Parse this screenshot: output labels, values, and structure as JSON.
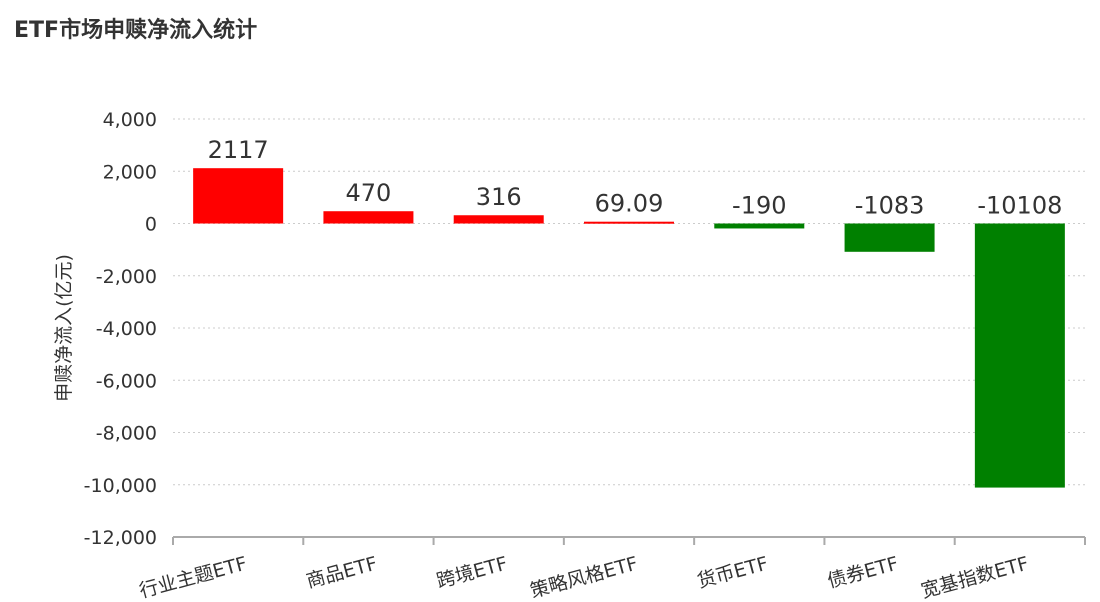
{
  "chart_data": {
    "type": "bar",
    "title": "ETF市场申赎净流入统计",
    "xlabel": "",
    "ylabel": "申赎净流入(亿元)",
    "categories": [
      "行业主题ETF",
      "商品ETF",
      "跨境ETF",
      "策略风格ETF",
      "货币ETF",
      "债券ETF",
      "宽基指数ETF"
    ],
    "values": [
      2117,
      470,
      316,
      69.09,
      -190,
      -1083,
      -10108
    ],
    "data_labels": [
      "2117",
      "470",
      "316",
      "69.09",
      "-190",
      "-1083",
      "-10108"
    ],
    "ylim": [
      -12000,
      4000
    ],
    "yticks": [
      4000,
      2000,
      0,
      -2000,
      -4000,
      -6000,
      -8000,
      -10000,
      -12000
    ],
    "ytick_labels": [
      "4,000",
      "2,000",
      "0",
      "-2,000",
      "-4,000",
      "-6,000",
      "-8,000",
      "-10,000",
      "-12,000"
    ],
    "grid": true,
    "colors": {
      "positive": "#ff0000",
      "negative": "#008000"
    }
  }
}
